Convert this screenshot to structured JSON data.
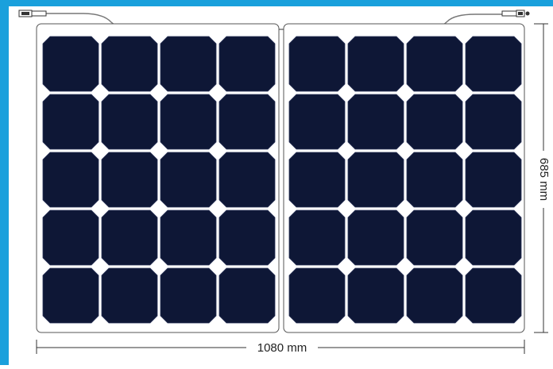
{
  "diagram": {
    "width_label": "1080 mm",
    "height_label": "685 mm",
    "panels": 2,
    "rows_per_panel": 5,
    "cols_per_panel": 4
  },
  "colors": {
    "frame_accent": "#1aa0dc",
    "cell": "#0e1736",
    "cell_edge": "#2a3358",
    "panel_outline": "#555555",
    "dimension_line": "#333333",
    "cable": "#777777"
  },
  "icons": {
    "left_connector": "mc4-connector-left-icon",
    "right_connector": "mc4-connector-right-icon"
  }
}
